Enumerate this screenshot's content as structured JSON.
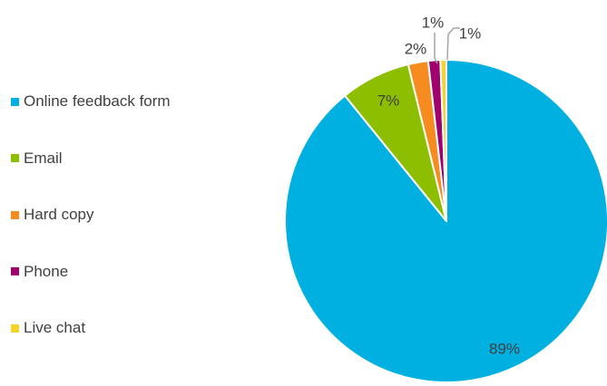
{
  "chart_data": {
    "type": "pie",
    "title": "",
    "start_angle_deg": 0,
    "direction": "clockwise",
    "legend_position": "left",
    "slices": [
      {
        "label": "Online feedback form",
        "value": 89,
        "display": "89%",
        "color": "#00B0E0"
      },
      {
        "label": "Email",
        "value": 7,
        "display": "7%",
        "color": "#8DBF00"
      },
      {
        "label": "Hard copy",
        "value": 2,
        "display": "2%",
        "color": "#F68B1F"
      },
      {
        "label": "Phone",
        "value": 1.2,
        "display": "1%",
        "color": "#A0006E"
      },
      {
        "label": "Live chat",
        "value": 0.6,
        "display": "1%",
        "color": "#F5D327"
      }
    ]
  }
}
